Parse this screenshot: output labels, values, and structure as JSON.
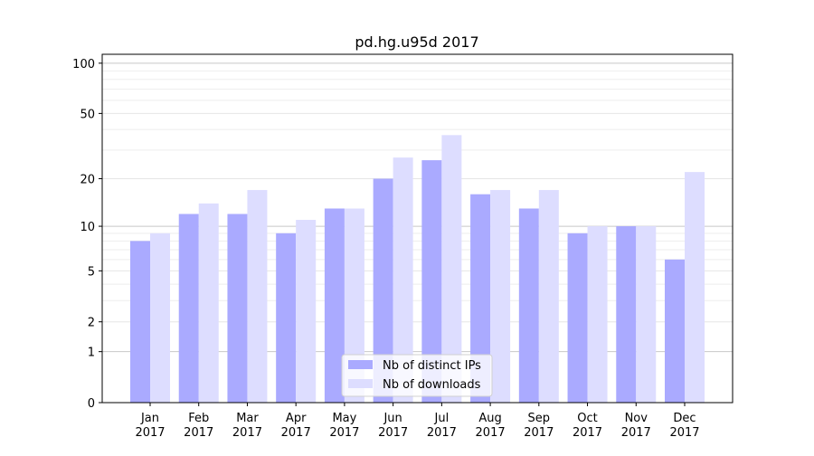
{
  "chart_data": {
    "type": "bar",
    "title": "pd.hg.u95d 2017",
    "xlabel": "",
    "ylabel": "",
    "yscale": "log10(1+y)",
    "ylim": [
      0,
      113
    ],
    "yticks": [
      0,
      1,
      2,
      5,
      10,
      20,
      50,
      100
    ],
    "ytick_labels": [
      "0",
      "1",
      "2",
      "5",
      "10",
      "20",
      "50",
      "100"
    ],
    "categories": [
      "Jan\n2017",
      "Feb\n2017",
      "Mar\n2017",
      "Apr\n2017",
      "May\n2017",
      "Jun\n2017",
      "Jul\n2017",
      "Aug\n2017",
      "Sep\n2017",
      "Oct\n2017",
      "Nov\n2017",
      "Dec\n2017"
    ],
    "series": [
      {
        "name": "Nb of distinct IPs",
        "color": "#aaaaff",
        "values": [
          8,
          12,
          12,
          9,
          13,
          20,
          26,
          16,
          13,
          9,
          10,
          6
        ]
      },
      {
        "name": "Nb of downloads",
        "color": "#ddddff",
        "values": [
          9,
          14,
          17,
          11,
          13,
          27,
          37,
          17,
          17,
          10,
          10,
          22
        ]
      }
    ],
    "grid": true,
    "legend_position": "bottom-center"
  }
}
